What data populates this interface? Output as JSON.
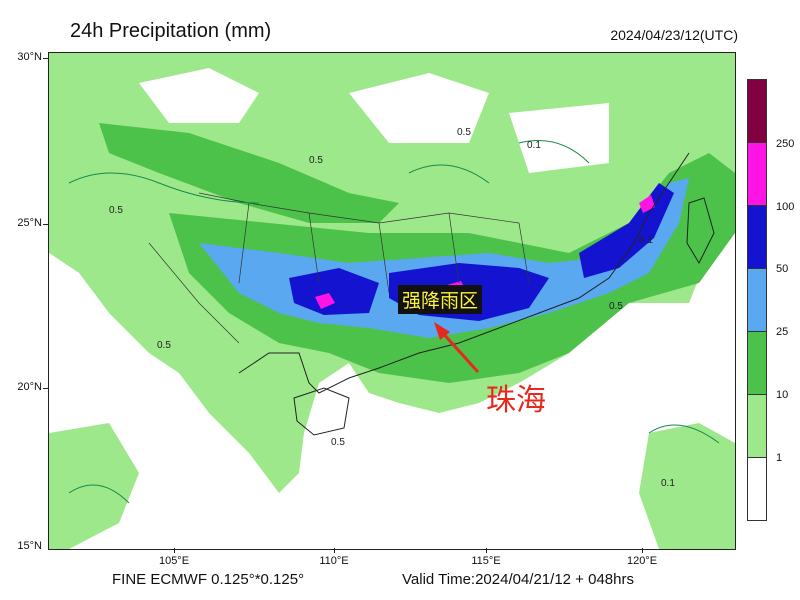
{
  "header": {
    "title": "24h Precipitation (mm)",
    "datestamp": "2024/04/23/12(UTC)"
  },
  "map": {
    "lat_labels": [
      "30°N",
      "25°N",
      "20°N",
      "15°N"
    ],
    "lon_labels": [
      "105°E",
      "110°E",
      "115°E",
      "120°E"
    ],
    "lat_range": [
      15,
      30
    ],
    "lon_range": [
      101.2,
      123.1
    ],
    "contour_labels": [
      "0.5",
      "0.1",
      "0.5",
      "0.1",
      "0.5",
      "0.5",
      "0.1",
      "0.5",
      "0.5"
    ],
    "colors": {
      "lt_green": "#9de88a",
      "green": "#4cc24a",
      "dk_green": "#2a9a2a",
      "lt_blue": "#5aa8f0",
      "blue": "#1414d0",
      "magenta": "#ff14e6",
      "maroon": "#800040"
    }
  },
  "annotations": {
    "heavy_rain_region": "强降雨区",
    "city": "珠海"
  },
  "legend": {
    "labels": [
      "250",
      "100",
      "50",
      "25",
      "10",
      "1"
    ],
    "colors": [
      "#800040",
      "#ff14e6",
      "#1414d0",
      "#5aa8f0",
      "#4cc24a",
      "#9de88a",
      "#ffffff"
    ]
  },
  "footer": {
    "model": "FINE ECMWF 0.125°*0.125°",
    "valid_time": "Valid Time:2024/04/21/12 + 048hrs"
  }
}
